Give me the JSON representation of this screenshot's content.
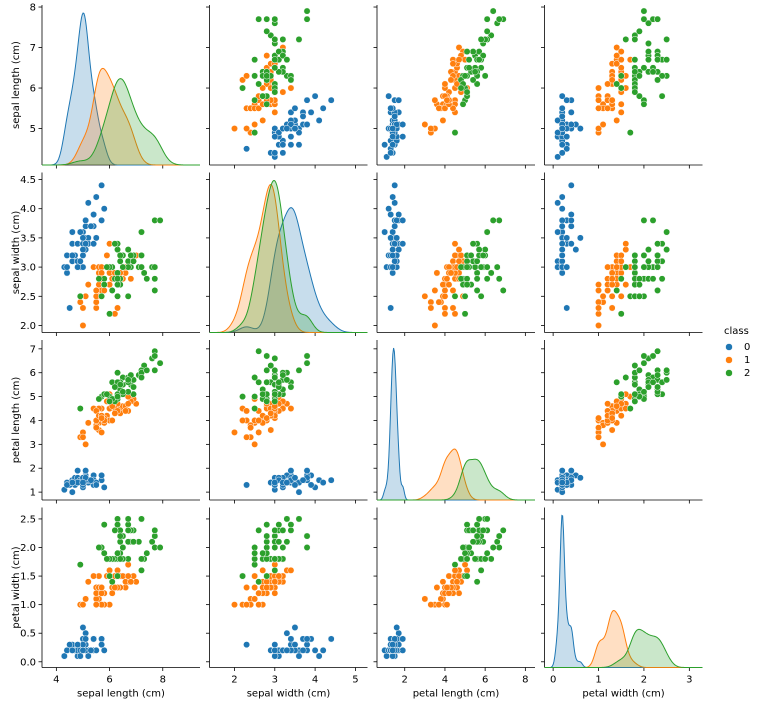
{
  "chart_data": {
    "type": "pairplot",
    "legend_title": "class",
    "variables": [
      {
        "label": "sepal length (cm)",
        "xlim": [
          3.46,
          9.4
        ],
        "xticks": [
          4,
          6,
          8
        ],
        "ylim": [
          4.1,
          8.05
        ],
        "yticks": [
          5,
          6,
          7,
          8
        ]
      },
      {
        "label": "sepal width (cm)",
        "xlim": [
          1.38,
          5.3
        ],
        "xticks": [
          2,
          3,
          4,
          5
        ],
        "ylim": [
          1.88,
          4.62
        ],
        "yticks": [
          {
            "value": 2,
            "label": "2.0"
          },
          {
            "value": 2.5,
            "label": "2.5"
          },
          {
            "value": 3,
            "label": "3.0"
          },
          {
            "value": 3.5,
            "label": "3.5"
          },
          {
            "value": 4,
            "label": "4.0"
          },
          {
            "value": 4.5,
            "label": "4.5"
          }
        ]
      },
      {
        "label": "petal length (cm)",
        "xlim": [
          0.62,
          8.48
        ],
        "xticks": [
          2,
          4,
          6,
          8
        ],
        "ylim": [
          0.67,
          7.37
        ],
        "yticks": [
          1,
          2,
          3,
          4,
          5,
          6,
          7
        ]
      },
      {
        "label": "petal width (cm)",
        "xlim": [
          -0.19,
          3.29
        ],
        "xticks": [
          0,
          1,
          2,
          3
        ],
        "ylim": [
          -0.1,
          2.7
        ],
        "yticks": [
          {
            "value": 0,
            "label": "0.0"
          },
          {
            "value": 0.5,
            "label": "0.5"
          },
          {
            "value": 1,
            "label": "1.0"
          },
          {
            "value": 1.5,
            "label": "1.5"
          },
          {
            "value": 2,
            "label": "2.0"
          },
          {
            "value": 2.5,
            "label": "2.5"
          }
        ]
      }
    ],
    "series": [
      {
        "name": "0",
        "color": "#1f77b4",
        "values": [
          [
            5.1,
            3.5,
            1.4,
            0.2
          ],
          [
            4.9,
            3.0,
            1.4,
            0.2
          ],
          [
            4.7,
            3.2,
            1.3,
            0.2
          ],
          [
            4.6,
            3.1,
            1.5,
            0.2
          ],
          [
            5.0,
            3.6,
            1.4,
            0.2
          ],
          [
            5.4,
            3.9,
            1.7,
            0.4
          ],
          [
            4.6,
            3.4,
            1.4,
            0.3
          ],
          [
            5.0,
            3.4,
            1.5,
            0.2
          ],
          [
            4.4,
            2.9,
            1.4,
            0.2
          ],
          [
            4.9,
            3.1,
            1.5,
            0.1
          ],
          [
            5.4,
            3.7,
            1.5,
            0.2
          ],
          [
            4.8,
            3.4,
            1.6,
            0.2
          ],
          [
            4.8,
            3.0,
            1.4,
            0.1
          ],
          [
            4.3,
            3.0,
            1.1,
            0.1
          ],
          [
            5.8,
            4.0,
            1.2,
            0.2
          ],
          [
            5.7,
            4.4,
            1.5,
            0.4
          ],
          [
            5.4,
            3.9,
            1.3,
            0.4
          ],
          [
            5.1,
            3.5,
            1.4,
            0.3
          ],
          [
            5.7,
            3.8,
            1.7,
            0.3
          ],
          [
            5.1,
            3.8,
            1.5,
            0.3
          ],
          [
            5.4,
            3.4,
            1.7,
            0.2
          ],
          [
            5.1,
            3.7,
            1.5,
            0.4
          ],
          [
            4.6,
            3.6,
            1.0,
            0.2
          ],
          [
            5.1,
            3.3,
            1.7,
            0.5
          ],
          [
            4.8,
            3.4,
            1.9,
            0.2
          ],
          [
            5.0,
            3.0,
            1.6,
            0.2
          ],
          [
            5.0,
            3.4,
            1.6,
            0.4
          ],
          [
            5.2,
            3.5,
            1.5,
            0.2
          ],
          [
            5.2,
            3.4,
            1.4,
            0.2
          ],
          [
            4.7,
            3.2,
            1.6,
            0.2
          ],
          [
            4.8,
            3.1,
            1.6,
            0.2
          ],
          [
            5.4,
            3.4,
            1.5,
            0.4
          ],
          [
            5.2,
            4.1,
            1.5,
            0.1
          ],
          [
            5.5,
            4.2,
            1.4,
            0.2
          ],
          [
            4.9,
            3.1,
            1.5,
            0.2
          ],
          [
            5.0,
            3.2,
            1.2,
            0.2
          ],
          [
            5.5,
            3.5,
            1.3,
            0.2
          ],
          [
            4.9,
            3.6,
            1.4,
            0.1
          ],
          [
            4.4,
            3.0,
            1.3,
            0.2
          ],
          [
            5.1,
            3.4,
            1.5,
            0.2
          ],
          [
            5.0,
            3.5,
            1.3,
            0.3
          ],
          [
            4.5,
            2.3,
            1.3,
            0.3
          ],
          [
            4.4,
            3.2,
            1.3,
            0.2
          ],
          [
            5.0,
            3.5,
            1.6,
            0.6
          ],
          [
            5.1,
            3.8,
            1.9,
            0.4
          ],
          [
            4.8,
            3.0,
            1.4,
            0.3
          ],
          [
            5.1,
            3.8,
            1.6,
            0.2
          ],
          [
            4.6,
            3.2,
            1.4,
            0.2
          ],
          [
            5.3,
            3.7,
            1.5,
            0.2
          ],
          [
            5.0,
            3.3,
            1.4,
            0.2
          ]
        ]
      },
      {
        "name": "1",
        "color": "#ff7f0e",
        "values": [
          [
            7.0,
            3.2,
            4.7,
            1.4
          ],
          [
            6.4,
            3.2,
            4.5,
            1.5
          ],
          [
            6.9,
            3.1,
            4.9,
            1.5
          ],
          [
            5.5,
            2.3,
            4.0,
            1.3
          ],
          [
            6.5,
            2.8,
            4.6,
            1.5
          ],
          [
            5.7,
            2.8,
            4.5,
            1.3
          ],
          [
            6.3,
            3.3,
            4.7,
            1.6
          ],
          [
            4.9,
            2.4,
            3.3,
            1.0
          ],
          [
            6.6,
            2.9,
            4.6,
            1.3
          ],
          [
            5.2,
            2.7,
            3.9,
            1.4
          ],
          [
            5.0,
            2.0,
            3.5,
            1.0
          ],
          [
            5.9,
            3.0,
            4.2,
            1.5
          ],
          [
            6.0,
            2.2,
            4.0,
            1.0
          ],
          [
            6.1,
            2.9,
            4.7,
            1.4
          ],
          [
            5.6,
            2.9,
            3.6,
            1.3
          ],
          [
            6.7,
            3.1,
            4.4,
            1.4
          ],
          [
            5.6,
            3.0,
            4.5,
            1.5
          ],
          [
            5.8,
            2.7,
            4.1,
            1.0
          ],
          [
            6.2,
            2.2,
            4.5,
            1.5
          ],
          [
            5.6,
            2.5,
            3.9,
            1.1
          ],
          [
            5.9,
            3.2,
            4.8,
            1.8
          ],
          [
            6.1,
            2.8,
            4.0,
            1.3
          ],
          [
            6.3,
            2.5,
            4.9,
            1.5
          ],
          [
            6.1,
            2.8,
            4.7,
            1.2
          ],
          [
            6.4,
            2.9,
            4.3,
            1.3
          ],
          [
            6.6,
            3.0,
            4.4,
            1.4
          ],
          [
            6.8,
            2.8,
            4.8,
            1.4
          ],
          [
            6.7,
            3.0,
            5.0,
            1.7
          ],
          [
            6.0,
            2.9,
            4.5,
            1.5
          ],
          [
            5.7,
            2.6,
            3.5,
            1.0
          ],
          [
            5.5,
            2.4,
            3.8,
            1.1
          ],
          [
            5.5,
            2.4,
            3.7,
            1.0
          ],
          [
            5.8,
            2.7,
            3.9,
            1.2
          ],
          [
            6.0,
            2.7,
            5.1,
            1.6
          ],
          [
            5.4,
            3.0,
            4.5,
            1.5
          ],
          [
            6.0,
            3.4,
            4.5,
            1.6
          ],
          [
            6.7,
            3.1,
            4.7,
            1.5
          ],
          [
            6.3,
            2.3,
            4.4,
            1.3
          ],
          [
            5.6,
            3.0,
            4.1,
            1.3
          ],
          [
            5.5,
            2.5,
            4.0,
            1.3
          ],
          [
            5.5,
            2.6,
            4.4,
            1.2
          ],
          [
            6.1,
            3.0,
            4.6,
            1.4
          ],
          [
            5.8,
            2.6,
            4.0,
            1.2
          ],
          [
            5.0,
            2.3,
            3.3,
            1.0
          ],
          [
            5.6,
            2.7,
            4.2,
            1.3
          ],
          [
            5.7,
            3.0,
            4.2,
            1.2
          ],
          [
            5.7,
            2.9,
            4.2,
            1.3
          ],
          [
            6.2,
            2.9,
            4.3,
            1.3
          ],
          [
            5.1,
            2.5,
            3.0,
            1.1
          ],
          [
            5.7,
            2.8,
            4.1,
            1.3
          ]
        ]
      },
      {
        "name": "2",
        "color": "#2ca02c",
        "values": [
          [
            6.3,
            3.3,
            6.0,
            2.5
          ],
          [
            5.8,
            2.7,
            5.1,
            1.9
          ],
          [
            7.1,
            3.0,
            5.9,
            2.1
          ],
          [
            6.3,
            2.9,
            5.6,
            1.8
          ],
          [
            6.5,
            3.0,
            5.8,
            2.2
          ],
          [
            7.6,
            3.0,
            6.6,
            2.1
          ],
          [
            4.9,
            2.5,
            4.5,
            1.7
          ],
          [
            7.3,
            2.9,
            6.3,
            1.8
          ],
          [
            6.7,
            2.5,
            5.8,
            1.8
          ],
          [
            7.2,
            3.6,
            6.1,
            2.5
          ],
          [
            6.5,
            3.2,
            5.1,
            2.0
          ],
          [
            6.4,
            2.7,
            5.3,
            1.9
          ],
          [
            6.8,
            3.0,
            5.5,
            2.1
          ],
          [
            5.7,
            2.5,
            5.0,
            2.0
          ],
          [
            5.8,
            2.8,
            5.1,
            2.4
          ],
          [
            6.4,
            3.2,
            5.3,
            2.3
          ],
          [
            6.5,
            3.0,
            5.5,
            1.8
          ],
          [
            7.7,
            3.8,
            6.7,
            2.2
          ],
          [
            7.7,
            2.6,
            6.9,
            2.3
          ],
          [
            6.0,
            2.2,
            5.0,
            1.5
          ],
          [
            6.9,
            3.2,
            5.7,
            2.3
          ],
          [
            5.6,
            2.8,
            4.9,
            2.0
          ],
          [
            7.7,
            2.8,
            6.7,
            2.0
          ],
          [
            6.3,
            2.7,
            4.9,
            1.8
          ],
          [
            6.7,
            3.3,
            5.7,
            2.1
          ],
          [
            7.2,
            3.2,
            6.0,
            1.8
          ],
          [
            6.2,
            2.8,
            4.8,
            1.8
          ],
          [
            6.1,
            3.0,
            4.9,
            1.8
          ],
          [
            6.4,
            2.8,
            5.6,
            2.1
          ],
          [
            7.2,
            3.0,
            5.8,
            1.6
          ],
          [
            7.4,
            2.8,
            6.1,
            1.9
          ],
          [
            7.9,
            3.8,
            6.4,
            2.0
          ],
          [
            6.4,
            2.8,
            5.6,
            2.2
          ],
          [
            6.3,
            2.8,
            5.1,
            1.5
          ],
          [
            6.1,
            2.6,
            5.6,
            1.4
          ],
          [
            7.7,
            3.0,
            6.1,
            2.3
          ],
          [
            6.3,
            3.4,
            5.6,
            2.4
          ],
          [
            6.4,
            3.1,
            5.5,
            1.8
          ],
          [
            6.0,
            3.0,
            4.8,
            1.8
          ],
          [
            6.9,
            3.1,
            5.4,
            2.1
          ],
          [
            6.7,
            3.1,
            5.6,
            2.4
          ],
          [
            6.9,
            3.1,
            5.1,
            2.3
          ],
          [
            5.8,
            2.7,
            5.1,
            1.9
          ],
          [
            6.8,
            3.2,
            5.9,
            2.3
          ],
          [
            6.7,
            3.3,
            5.7,
            2.5
          ],
          [
            6.7,
            3.0,
            5.2,
            2.3
          ],
          [
            6.3,
            2.5,
            5.0,
            1.9
          ],
          [
            6.5,
            3.0,
            5.2,
            2.0
          ],
          [
            6.2,
            3.4,
            5.4,
            2.3
          ],
          [
            5.9,
            3.0,
            5.1,
            1.8
          ]
        ]
      }
    ]
  }
}
